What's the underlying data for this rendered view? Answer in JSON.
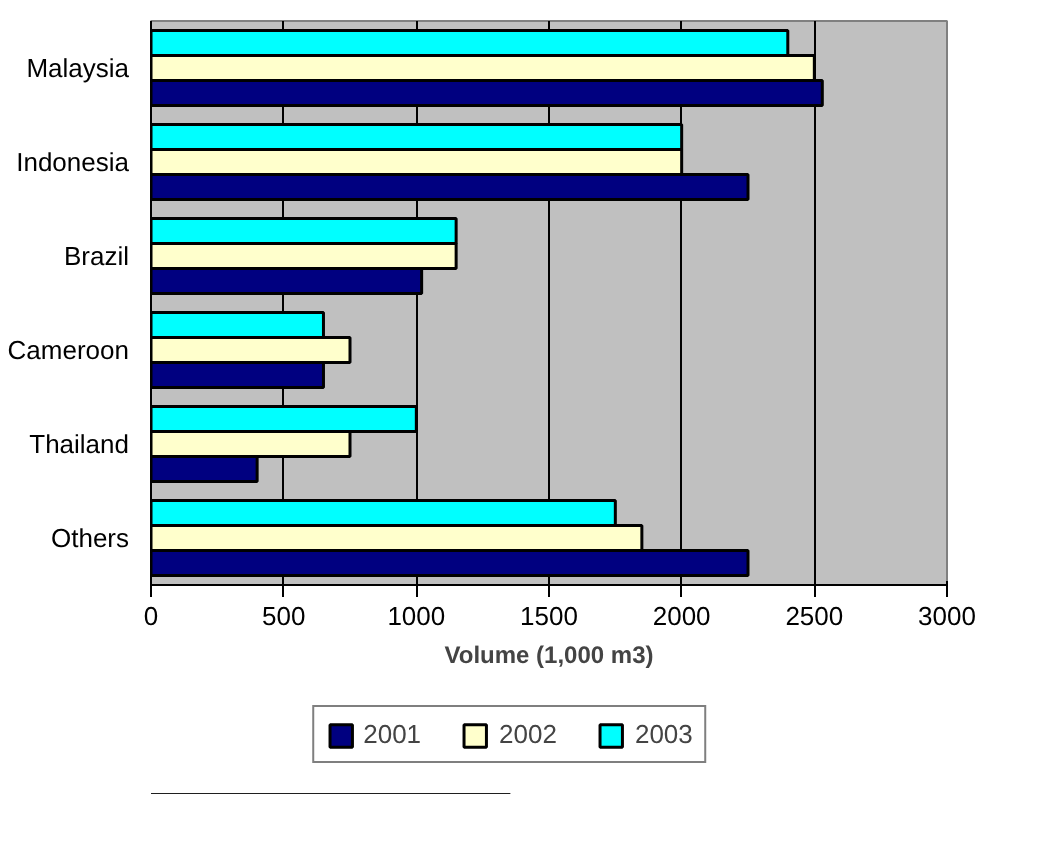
{
  "chart_data": {
    "type": "bar",
    "orientation": "horizontal",
    "xlabel": "Volume (1,000 m3)",
    "categories": [
      "Malaysia",
      "Indonesia",
      "Brazil",
      "Cameroon",
      "Thailand",
      "Others"
    ],
    "series": [
      {
        "name": "2001",
        "color": "#000080",
        "values": [
          2530,
          2250,
          1020,
          650,
          400,
          2250
        ]
      },
      {
        "name": "2002",
        "color": "#ffffcc",
        "values": [
          2500,
          2000,
          1150,
          750,
          750,
          1850
        ]
      },
      {
        "name": "2003",
        "color": "#00ffff",
        "values": [
          2400,
          2000,
          1150,
          650,
          1000,
          1750
        ]
      }
    ],
    "xlim": [
      0,
      3000
    ],
    "xticks": [
      0,
      500,
      1000,
      1500,
      2000,
      2500,
      3000
    ],
    "grid": "x",
    "legend": "bottom"
  }
}
